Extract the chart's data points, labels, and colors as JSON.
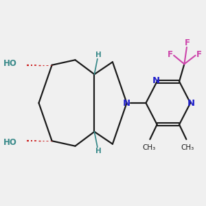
{
  "bg_color": "#f0f0f0",
  "bond_color": "#1a1a1a",
  "N_color": "#2222cc",
  "O_color": "#cc2020",
  "F_color": "#cc44aa",
  "H_color": "#3a8a8a",
  "figsize": [
    3.0,
    3.0
  ],
  "dpi": 100,
  "xlim": [
    0,
    10
  ],
  "ylim": [
    0,
    10
  ]
}
